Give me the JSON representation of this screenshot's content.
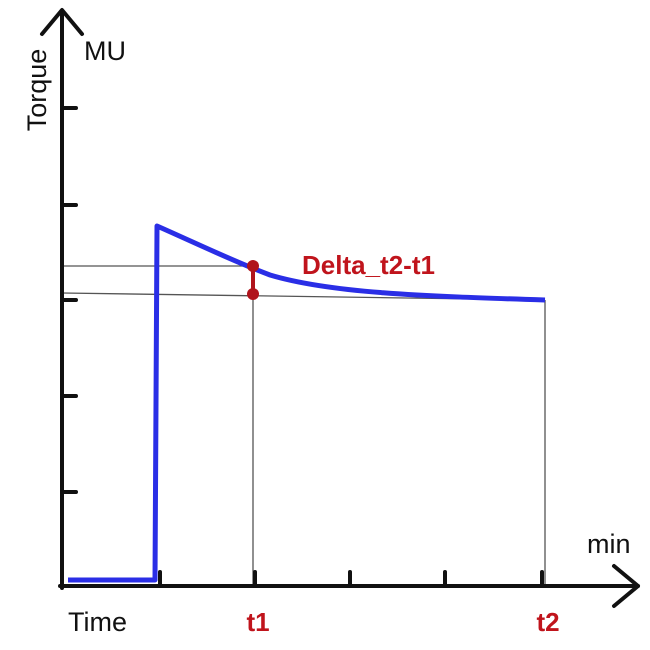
{
  "axes": {
    "y_label": "Torque",
    "y_unit": "MU",
    "x_unit": "min",
    "x_label": "Time"
  },
  "markers": {
    "t1": "t1",
    "t2": "t2",
    "delta": "Delta_t2-t1"
  }
}
